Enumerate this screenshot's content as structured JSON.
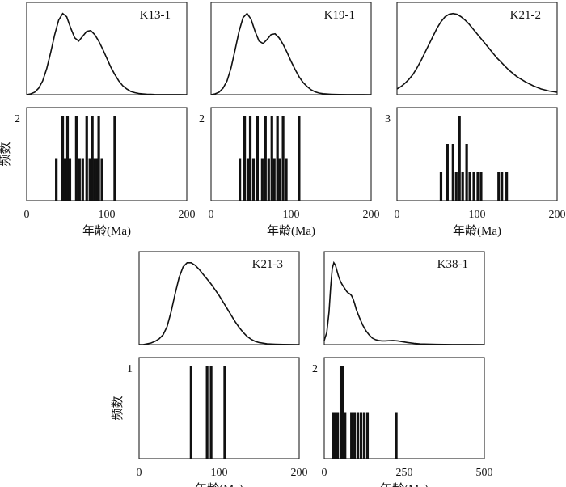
{
  "figure_title": "",
  "chart_data": [
    {
      "type": "bar",
      "sample": "K13-1",
      "xlabel": "年龄(Ma)",
      "ylabel": "频数",
      "xlim": [
        0,
        200
      ],
      "xticks": [
        "0",
        "100",
        "200"
      ],
      "ymax_label": "2",
      "ymax": 2,
      "bars": [
        {
          "x": 37,
          "count": 1
        },
        {
          "x": 45,
          "count": 2
        },
        {
          "x": 48,
          "count": 1
        },
        {
          "x": 51,
          "count": 2
        },
        {
          "x": 54,
          "count": 1
        },
        {
          "x": 62,
          "count": 2
        },
        {
          "x": 66,
          "count": 1
        },
        {
          "x": 70,
          "count": 1
        },
        {
          "x": 75,
          "count": 2
        },
        {
          "x": 79,
          "count": 1
        },
        {
          "x": 82,
          "count": 2
        },
        {
          "x": 85,
          "count": 1
        },
        {
          "x": 88,
          "count": 1
        },
        {
          "x": 90,
          "count": 2
        },
        {
          "x": 94,
          "count": 1
        },
        {
          "x": 110,
          "count": 2
        }
      ],
      "density": {
        "x": [
          0,
          5,
          10,
          15,
          20,
          25,
          30,
          35,
          40,
          45,
          50,
          55,
          60,
          65,
          70,
          75,
          80,
          85,
          90,
          95,
          100,
          105,
          110,
          115,
          120,
          125,
          130,
          135,
          140,
          145,
          150,
          155,
          160,
          170,
          180,
          190,
          200
        ],
        "y": [
          0.0,
          0.01,
          0.03,
          0.08,
          0.17,
          0.32,
          0.52,
          0.74,
          0.92,
          1.0,
          0.96,
          0.82,
          0.7,
          0.66,
          0.72,
          0.78,
          0.79,
          0.74,
          0.66,
          0.56,
          0.45,
          0.34,
          0.25,
          0.17,
          0.11,
          0.07,
          0.04,
          0.025,
          0.015,
          0.01,
          0.006,
          0.004,
          0.002,
          0.001,
          0.0005,
          0.0002,
          0.0
        ]
      }
    },
    {
      "type": "bar",
      "sample": "K19-1",
      "xlabel": "年龄(Ma)",
      "ylabel": "",
      "xlim": [
        0,
        200
      ],
      "xticks": [
        "0",
        "100",
        "200"
      ],
      "ymax_label": "2",
      "ymax": 2,
      "bars": [
        {
          "x": 36,
          "count": 1
        },
        {
          "x": 42,
          "count": 2
        },
        {
          "x": 46,
          "count": 1
        },
        {
          "x": 49,
          "count": 2
        },
        {
          "x": 53,
          "count": 1
        },
        {
          "x": 58,
          "count": 2
        },
        {
          "x": 64,
          "count": 1
        },
        {
          "x": 68,
          "count": 2
        },
        {
          "x": 72,
          "count": 1
        },
        {
          "x": 76,
          "count": 2
        },
        {
          "x": 79,
          "count": 1
        },
        {
          "x": 83,
          "count": 2
        },
        {
          "x": 86,
          "count": 1
        },
        {
          "x": 90,
          "count": 2
        },
        {
          "x": 94,
          "count": 1
        },
        {
          "x": 110,
          "count": 2
        }
      ],
      "density": {
        "x": [
          0,
          5,
          10,
          15,
          20,
          25,
          30,
          35,
          40,
          45,
          50,
          55,
          60,
          65,
          70,
          75,
          80,
          85,
          90,
          95,
          100,
          105,
          110,
          115,
          120,
          125,
          130,
          135,
          140,
          145,
          150,
          155,
          160,
          170,
          180,
          190,
          200
        ],
        "y": [
          0.0,
          0.01,
          0.03,
          0.08,
          0.17,
          0.33,
          0.55,
          0.78,
          0.95,
          1.0,
          0.93,
          0.78,
          0.66,
          0.63,
          0.68,
          0.74,
          0.75,
          0.7,
          0.62,
          0.52,
          0.41,
          0.31,
          0.22,
          0.15,
          0.1,
          0.06,
          0.035,
          0.02,
          0.012,
          0.008,
          0.005,
          0.003,
          0.002,
          0.001,
          0.0005,
          0.0002,
          0.0
        ]
      }
    },
    {
      "type": "bar",
      "sample": "K21-2",
      "xlabel": "年龄(Ma)",
      "ylabel": "",
      "xlim": [
        0,
        200
      ],
      "xticks": [
        "0",
        "100",
        "200"
      ],
      "ymax_label": "3",
      "ymax": 3,
      "bars": [
        {
          "x": 55,
          "count": 1
        },
        {
          "x": 63,
          "count": 2
        },
        {
          "x": 70,
          "count": 2
        },
        {
          "x": 74,
          "count": 1
        },
        {
          "x": 78,
          "count": 3
        },
        {
          "x": 82,
          "count": 1
        },
        {
          "x": 87,
          "count": 2
        },
        {
          "x": 91,
          "count": 1
        },
        {
          "x": 96,
          "count": 1
        },
        {
          "x": 101,
          "count": 1
        },
        {
          "x": 105,
          "count": 1
        },
        {
          "x": 127,
          "count": 1
        },
        {
          "x": 131,
          "count": 1
        },
        {
          "x": 137,
          "count": 1
        }
      ],
      "density": {
        "x": [
          0,
          5,
          10,
          15,
          20,
          25,
          30,
          35,
          40,
          45,
          50,
          55,
          60,
          65,
          70,
          75,
          80,
          85,
          90,
          95,
          100,
          105,
          110,
          115,
          120,
          125,
          130,
          135,
          140,
          145,
          150,
          160,
          170,
          180,
          190,
          200
        ],
        "y": [
          0.07,
          0.1,
          0.14,
          0.19,
          0.25,
          0.33,
          0.42,
          0.52,
          0.62,
          0.72,
          0.82,
          0.9,
          0.96,
          0.99,
          1.0,
          0.99,
          0.96,
          0.92,
          0.87,
          0.81,
          0.75,
          0.69,
          0.63,
          0.57,
          0.51,
          0.45,
          0.4,
          0.35,
          0.3,
          0.26,
          0.22,
          0.16,
          0.11,
          0.07,
          0.045,
          0.03
        ]
      }
    },
    {
      "type": "bar",
      "sample": "K21-3",
      "xlabel": "年龄(Ma)",
      "ylabel": "频数",
      "xlim": [
        0,
        200
      ],
      "xticks": [
        "0",
        "100",
        "200"
      ],
      "ymax_label": "1",
      "ymax": 1,
      "bars": [
        {
          "x": 65,
          "count": 1
        },
        {
          "x": 85,
          "count": 1
        },
        {
          "x": 90,
          "count": 1
        },
        {
          "x": 107,
          "count": 1
        }
      ],
      "density": {
        "x": [
          0,
          5,
          10,
          15,
          20,
          25,
          30,
          35,
          40,
          45,
          50,
          55,
          60,
          65,
          70,
          75,
          80,
          85,
          90,
          95,
          100,
          105,
          110,
          115,
          120,
          125,
          130,
          135,
          140,
          145,
          150,
          160,
          170,
          180,
          190,
          200
        ],
        "y": [
          0.0,
          0.0,
          0.01,
          0.02,
          0.04,
          0.07,
          0.12,
          0.22,
          0.4,
          0.62,
          0.82,
          0.95,
          1.0,
          1.0,
          0.97,
          0.92,
          0.86,
          0.8,
          0.74,
          0.67,
          0.6,
          0.52,
          0.44,
          0.36,
          0.28,
          0.21,
          0.15,
          0.1,
          0.065,
          0.04,
          0.025,
          0.01,
          0.005,
          0.002,
          0.001,
          0.0
        ]
      }
    },
    {
      "type": "bar",
      "sample": "K38-1",
      "xlabel": "年龄(Ma)",
      "ylabel": "",
      "xlim": [
        0,
        500
      ],
      "xticks": [
        "0",
        "250",
        "500"
      ],
      "ymax_label": "2",
      "ymax": 2,
      "bars": [
        {
          "x": 28,
          "count": 1
        },
        {
          "x": 35,
          "count": 1
        },
        {
          "x": 42,
          "count": 1
        },
        {
          "x": 52,
          "count": 2
        },
        {
          "x": 58,
          "count": 2
        },
        {
          "x": 65,
          "count": 1
        },
        {
          "x": 85,
          "count": 1
        },
        {
          "x": 95,
          "count": 1
        },
        {
          "x": 105,
          "count": 1
        },
        {
          "x": 115,
          "count": 1
        },
        {
          "x": 125,
          "count": 1
        },
        {
          "x": 135,
          "count": 1
        },
        {
          "x": 225,
          "count": 1
        }
      ],
      "density": {
        "x": [
          0,
          8,
          15,
          20,
          25,
          30,
          35,
          40,
          45,
          50,
          55,
          60,
          65,
          70,
          75,
          80,
          85,
          90,
          95,
          100,
          110,
          120,
          130,
          140,
          150,
          160,
          170,
          180,
          190,
          200,
          215,
          230,
          245,
          260,
          280,
          300,
          350,
          400,
          450,
          500
        ],
        "y": [
          0.05,
          0.15,
          0.4,
          0.7,
          0.93,
          1.0,
          0.97,
          0.9,
          0.83,
          0.78,
          0.74,
          0.71,
          0.68,
          0.65,
          0.63,
          0.62,
          0.6,
          0.56,
          0.5,
          0.43,
          0.33,
          0.24,
          0.17,
          0.12,
          0.08,
          0.06,
          0.05,
          0.045,
          0.045,
          0.048,
          0.05,
          0.045,
          0.035,
          0.025,
          0.015,
          0.008,
          0.003,
          0.001,
          0.0005,
          0.0
        ]
      }
    }
  ]
}
